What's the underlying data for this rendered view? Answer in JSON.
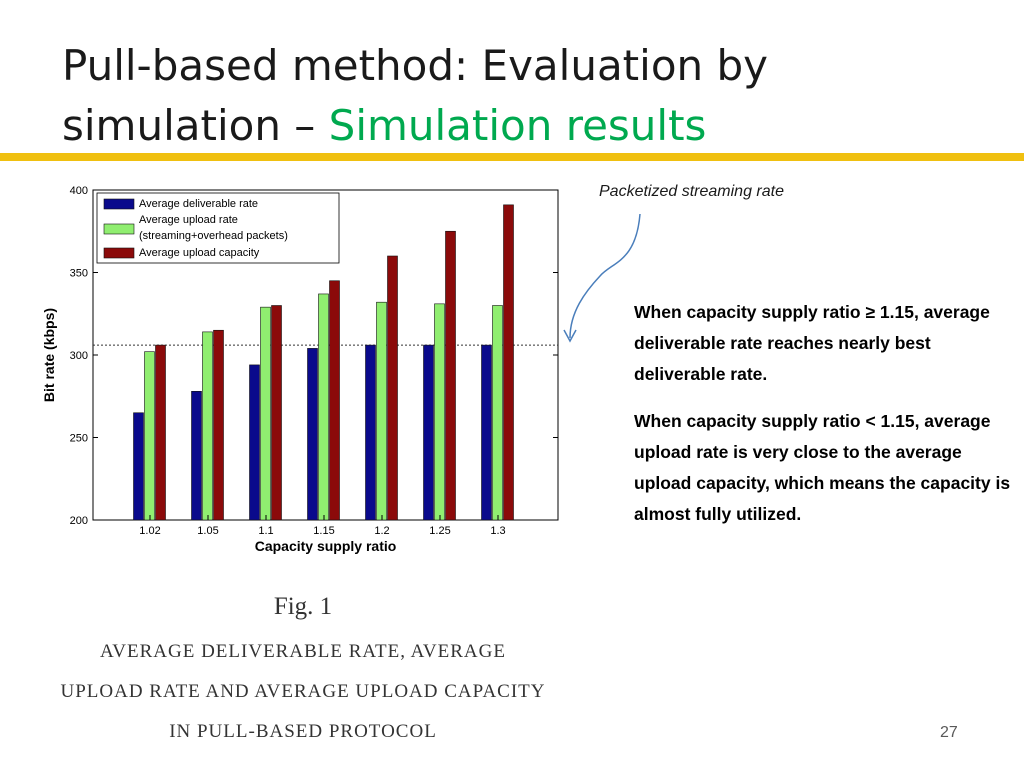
{
  "slide": {
    "title_line1": "Pull-based method: Evaluation by",
    "title_line2": "simulation – ",
    "title_highlight": "Simulation results",
    "annotation": "Packetized streaming rate",
    "bullets": [
      "When capacity supply ratio ≥ 1.15, average deliverable rate reaches nearly best deliverable rate.",
      "When capacity supply ratio < 1.15, average upload rate is very close to the average upload capacity, which means the capacity is almost fully utilized."
    ],
    "fig_label": "Fig. 1",
    "caption_lines": [
      "AVERAGE DELIVERABLE RATE, AVERAGE",
      "UPLOAD RATE AND AVERAGE UPLOAD CAPACITY",
      "IN PULL-BASED PROTOCOL"
    ],
    "page_number": "27",
    "colors": {
      "accent_rule": "#f0c010",
      "highlight_text": "#00a94f"
    }
  },
  "chart_data": {
    "type": "bar",
    "title": "",
    "xlabel": "Capacity supply ratio",
    "ylabel": "Bit rate (kbps)",
    "ylim": [
      200,
      400
    ],
    "yticks": [
      200,
      250,
      300,
      350,
      400
    ],
    "categories": [
      "1.02",
      "1.05",
      "1.1",
      "1.15",
      "1.2",
      "1.25",
      "1.3"
    ],
    "reference_line": {
      "y": 306,
      "style": "dotted"
    },
    "legend_position": "top-left",
    "series": [
      {
        "name": "Average deliverable rate",
        "color": "#0a0a8c",
        "values": [
          265,
          278,
          294,
          304,
          306,
          306,
          306
        ]
      },
      {
        "name": "Average upload rate (streaming+overhead packets)",
        "color": "#90ee70",
        "values": [
          302,
          314,
          329,
          337,
          332,
          331,
          330
        ]
      },
      {
        "name": "Average upload capacity",
        "color": "#8b0a0a",
        "values": [
          306,
          315,
          330,
          345,
          360,
          375,
          391
        ]
      }
    ]
  }
}
